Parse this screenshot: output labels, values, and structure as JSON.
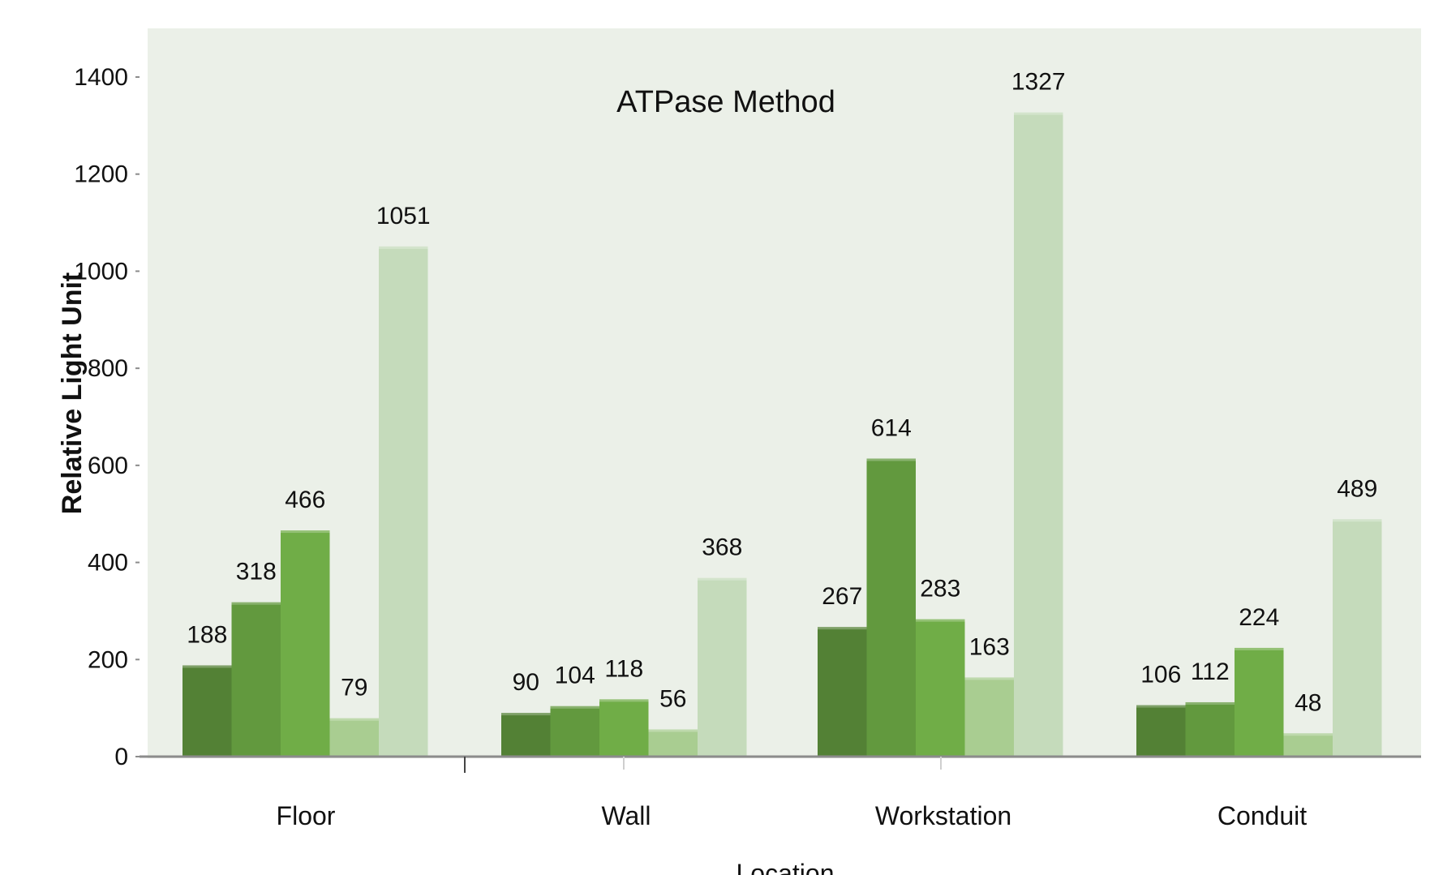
{
  "chart_data": {
    "type": "bar",
    "title": "ATPase Method",
    "xlabel": "Location",
    "ylabel": "Relative Light Unit",
    "categories": [
      "Floor",
      "Wall",
      "Workstation",
      "Conduit"
    ],
    "series": [
      {
        "values": [
          188,
          90,
          267,
          106
        ],
        "color": "#538135"
      },
      {
        "values": [
          318,
          104,
          614,
          112
        ],
        "color": "#62993e"
      },
      {
        "values": [
          466,
          118,
          283,
          224
        ],
        "color": "#70ad47"
      },
      {
        "values": [
          79,
          56,
          163,
          48
        ],
        "color": "#a9cd91"
      },
      {
        "values": [
          1051,
          368,
          1327,
          489
        ],
        "color": "#c5dbbb"
      }
    ],
    "ylim": [
      0,
      1400
    ],
    "yticks": [
      0,
      200,
      400,
      600,
      800,
      1000,
      1200,
      1400
    ],
    "grid": false,
    "legend": "none",
    "background_color": "#ebf0e8",
    "axis_color": "#8c8c8c"
  }
}
